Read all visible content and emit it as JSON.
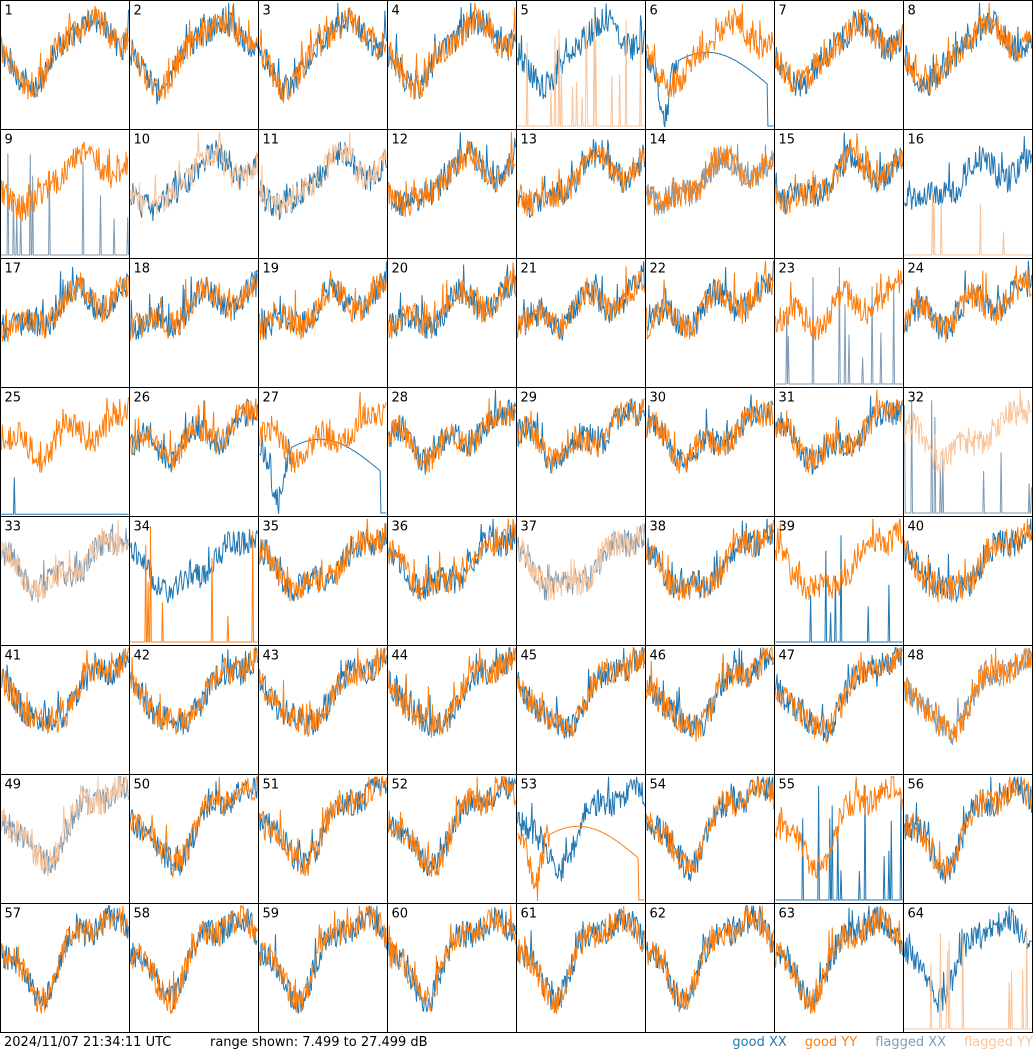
{
  "footer": {
    "timestamp": "2024/11/07 21:34:11 UTC",
    "range_text": "range shown: 7.499 to 27.499 dB",
    "legend": [
      {
        "label": "good XX",
        "color": "#1f77b4"
      },
      {
        "label": "good YY",
        "color": "#ff7f0e"
      },
      {
        "label": "flagged XX",
        "color": "#7f9bb3"
      },
      {
        "label": "flagged YY",
        "color": "#f9c49a"
      }
    ]
  },
  "chart_data": {
    "type": "line",
    "grid": {
      "rows": 8,
      "cols": 8
    },
    "ylim": [
      7.499,
      27.499
    ],
    "yunit": "dB",
    "colors": {
      "good_xx": "#1f77b4",
      "good_yy": "#ff7f0e",
      "flagged_xx": "#7f9bb3",
      "flagged_yy": "#f9c49a"
    },
    "panels": [
      {
        "id": "1",
        "xx": "good",
        "yy": "good",
        "shape": "normal"
      },
      {
        "id": "2",
        "xx": "good",
        "yy": "good",
        "shape": "normal"
      },
      {
        "id": "3",
        "xx": "good",
        "yy": "good",
        "shape": "normal"
      },
      {
        "id": "4",
        "xx": "good",
        "yy": "good",
        "shape": "normal"
      },
      {
        "id": "5",
        "xx": "good",
        "yy": "flagged",
        "shape": "yy_spiky"
      },
      {
        "id": "6",
        "xx": "good",
        "yy": "good",
        "shape": "xx_dip"
      },
      {
        "id": "7",
        "xx": "good",
        "yy": "good",
        "shape": "normal"
      },
      {
        "id": "8",
        "xx": "good",
        "yy": "good",
        "shape": "normal"
      },
      {
        "id": "9",
        "xx": "flagged",
        "yy": "good",
        "shape": "xx_spiky"
      },
      {
        "id": "10",
        "xx": "good",
        "yy": "flagged",
        "shape": "normal"
      },
      {
        "id": "11",
        "xx": "good",
        "yy": "flagged",
        "shape": "normal"
      },
      {
        "id": "12",
        "xx": "good",
        "yy": "good",
        "shape": "normal"
      },
      {
        "id": "13",
        "xx": "good",
        "yy": "good",
        "shape": "normal"
      },
      {
        "id": "14",
        "xx": "flagged",
        "yy": "good",
        "shape": "normal"
      },
      {
        "id": "15",
        "xx": "good",
        "yy": "good",
        "shape": "normal"
      },
      {
        "id": "16",
        "xx": "good",
        "yy": "flagged",
        "shape": "yy_spiky"
      },
      {
        "id": "17",
        "xx": "good",
        "yy": "good",
        "shape": "normal"
      },
      {
        "id": "18",
        "xx": "good",
        "yy": "good",
        "shape": "normal"
      },
      {
        "id": "19",
        "xx": "good",
        "yy": "good",
        "shape": "normal"
      },
      {
        "id": "20",
        "xx": "good",
        "yy": "good",
        "shape": "normal"
      },
      {
        "id": "21",
        "xx": "good",
        "yy": "good",
        "shape": "normal"
      },
      {
        "id": "22",
        "xx": "good",
        "yy": "good",
        "shape": "normal"
      },
      {
        "id": "23",
        "xx": "flagged",
        "yy": "good",
        "shape": "xx_spiky"
      },
      {
        "id": "24",
        "xx": "good",
        "yy": "good",
        "shape": "normal"
      },
      {
        "id": "25",
        "xx": "good",
        "yy": "good",
        "shape": "xx_low"
      },
      {
        "id": "26",
        "xx": "good",
        "yy": "good",
        "shape": "normal"
      },
      {
        "id": "27",
        "xx": "good",
        "yy": "good",
        "shape": "xx_dip"
      },
      {
        "id": "28",
        "xx": "good",
        "yy": "good",
        "shape": "normal"
      },
      {
        "id": "29",
        "xx": "good",
        "yy": "good",
        "shape": "normal"
      },
      {
        "id": "30",
        "xx": "good",
        "yy": "good",
        "shape": "normal"
      },
      {
        "id": "31",
        "xx": "good",
        "yy": "good",
        "shape": "normal"
      },
      {
        "id": "32",
        "xx": "flagged",
        "yy": "flagged",
        "shape": "xx_spiky"
      },
      {
        "id": "33",
        "xx": "flagged",
        "yy": "flagged",
        "shape": "normal"
      },
      {
        "id": "34",
        "xx": "good",
        "yy": "good",
        "shape": "yy_spiky"
      },
      {
        "id": "35",
        "xx": "good",
        "yy": "good",
        "shape": "normal"
      },
      {
        "id": "36",
        "xx": "good",
        "yy": "good",
        "shape": "normal"
      },
      {
        "id": "37",
        "xx": "flagged",
        "yy": "flagged",
        "shape": "normal"
      },
      {
        "id": "38",
        "xx": "good",
        "yy": "good",
        "shape": "normal"
      },
      {
        "id": "39",
        "xx": "good",
        "yy": "good",
        "shape": "xx_spiky"
      },
      {
        "id": "40",
        "xx": "good",
        "yy": "good",
        "shape": "normal"
      },
      {
        "id": "41",
        "xx": "good",
        "yy": "good",
        "shape": "normal"
      },
      {
        "id": "42",
        "xx": "good",
        "yy": "good",
        "shape": "normal"
      },
      {
        "id": "43",
        "xx": "good",
        "yy": "good",
        "shape": "normal"
      },
      {
        "id": "44",
        "xx": "good",
        "yy": "good",
        "shape": "normal"
      },
      {
        "id": "45",
        "xx": "good",
        "yy": "good",
        "shape": "normal"
      },
      {
        "id": "46",
        "xx": "good",
        "yy": "good",
        "shape": "normal"
      },
      {
        "id": "47",
        "xx": "good",
        "yy": "good",
        "shape": "normal"
      },
      {
        "id": "48",
        "xx": "flagged",
        "yy": "good",
        "shape": "normal"
      },
      {
        "id": "49",
        "xx": "flagged",
        "yy": "flagged",
        "shape": "normal"
      },
      {
        "id": "50",
        "xx": "good",
        "yy": "good",
        "shape": "normal"
      },
      {
        "id": "51",
        "xx": "good",
        "yy": "good",
        "shape": "normal"
      },
      {
        "id": "52",
        "xx": "good",
        "yy": "good",
        "shape": "normal"
      },
      {
        "id": "53",
        "xx": "good",
        "yy": "good",
        "shape": "yy_dip"
      },
      {
        "id": "54",
        "xx": "good",
        "yy": "good",
        "shape": "normal"
      },
      {
        "id": "55",
        "xx": "good",
        "yy": "good",
        "shape": "xx_spiky"
      },
      {
        "id": "56",
        "xx": "good",
        "yy": "good",
        "shape": "normal"
      },
      {
        "id": "57",
        "xx": "good",
        "yy": "good",
        "shape": "normal"
      },
      {
        "id": "58",
        "xx": "good",
        "yy": "good",
        "shape": "normal"
      },
      {
        "id": "59",
        "xx": "good",
        "yy": "good",
        "shape": "normal"
      },
      {
        "id": "60",
        "xx": "good",
        "yy": "good",
        "shape": "normal"
      },
      {
        "id": "61",
        "xx": "good",
        "yy": "good",
        "shape": "normal"
      },
      {
        "id": "62",
        "xx": "good",
        "yy": "good",
        "shape": "normal"
      },
      {
        "id": "63",
        "xx": "good",
        "yy": "good",
        "shape": "normal"
      },
      {
        "id": "64",
        "xx": "good",
        "yy": "flagged",
        "shape": "yy_spiky"
      }
    ]
  }
}
